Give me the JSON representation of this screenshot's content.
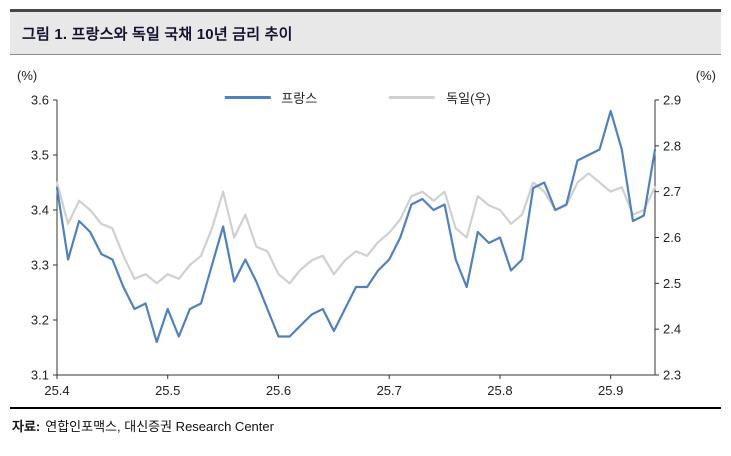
{
  "header": {
    "title": "그림 1. 프랑스와 독일 국채 10년 금리 추이"
  },
  "footer": {
    "label": "자료:",
    "text": "연합인포맥스, 대신증권 Research Center"
  },
  "chart_data": {
    "type": "line",
    "title": "그림 1. 프랑스와 독일 국채 10년 금리 추이",
    "grid": false,
    "legend_position": "top-center",
    "x_axis": {
      "min": 25.4,
      "max": 25.94,
      "ticks": [
        25.4,
        25.5,
        25.6,
        25.7,
        25.8,
        25.9
      ]
    },
    "left_axis": {
      "label": "(%)",
      "min": 3.1,
      "max": 3.6,
      "ticks": [
        3.1,
        3.2,
        3.3,
        3.4,
        3.5,
        3.6
      ]
    },
    "right_axis": {
      "label": "(%)",
      "min": 2.3,
      "max": 2.9,
      "ticks": [
        2.3,
        2.4,
        2.5,
        2.6,
        2.7,
        2.8,
        2.9
      ]
    },
    "x": [
      25.4,
      25.41,
      25.42,
      25.43,
      25.44,
      25.45,
      25.46,
      25.47,
      25.48,
      25.49,
      25.5,
      25.51,
      25.52,
      25.53,
      25.54,
      25.55,
      25.56,
      25.57,
      25.58,
      25.59,
      25.6,
      25.61,
      25.62,
      25.63,
      25.64,
      25.65,
      25.66,
      25.67,
      25.68,
      25.69,
      25.7,
      25.71,
      25.72,
      25.73,
      25.74,
      25.75,
      25.76,
      25.77,
      25.78,
      25.79,
      25.8,
      25.81,
      25.82,
      25.83,
      25.84,
      25.85,
      25.86,
      25.87,
      25.88,
      25.89,
      25.9,
      25.91,
      25.92,
      25.93,
      25.94
    ],
    "series": [
      {
        "name": "프랑스",
        "axis": "left",
        "color": "#4f81bd",
        "values": [
          3.44,
          3.31,
          3.38,
          3.36,
          3.32,
          3.31,
          3.26,
          3.22,
          3.23,
          3.16,
          3.22,
          3.17,
          3.22,
          3.23,
          3.3,
          3.37,
          3.27,
          3.31,
          3.27,
          3.22,
          3.17,
          3.17,
          3.19,
          3.21,
          3.22,
          3.18,
          3.22,
          3.26,
          3.26,
          3.29,
          3.31,
          3.35,
          3.41,
          3.42,
          3.4,
          3.41,
          3.31,
          3.26,
          3.36,
          3.34,
          3.35,
          3.29,
          3.31,
          3.44,
          3.45,
          3.4,
          3.41,
          3.49,
          3.5,
          3.51,
          3.58,
          3.51,
          3.38,
          3.39,
          3.51
        ]
      },
      {
        "name": "독일(우)",
        "axis": "right",
        "color": "#d0d0d0",
        "values": [
          2.72,
          2.63,
          2.68,
          2.66,
          2.63,
          2.62,
          2.56,
          2.51,
          2.52,
          2.5,
          2.52,
          2.51,
          2.54,
          2.56,
          2.62,
          2.7,
          2.6,
          2.65,
          2.58,
          2.57,
          2.52,
          2.5,
          2.53,
          2.55,
          2.56,
          2.52,
          2.55,
          2.57,
          2.56,
          2.59,
          2.61,
          2.64,
          2.69,
          2.7,
          2.68,
          2.7,
          2.62,
          2.6,
          2.69,
          2.67,
          2.66,
          2.63,
          2.65,
          2.72,
          2.7,
          2.66,
          2.67,
          2.72,
          2.74,
          2.72,
          2.7,
          2.71,
          2.65,
          2.66,
          2.71
        ]
      }
    ]
  }
}
